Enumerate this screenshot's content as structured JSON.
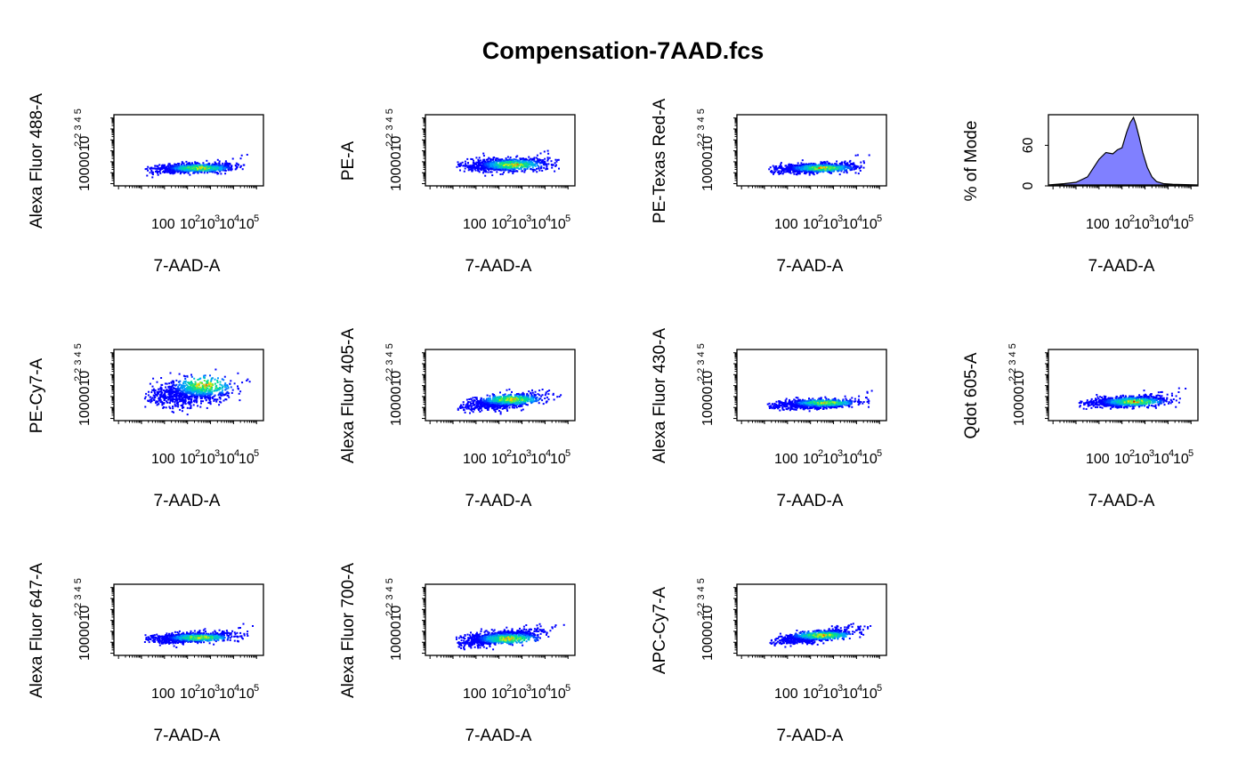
{
  "figure": {
    "title": "Compensation-7AAD.fcs"
  },
  "chart_data": [
    {
      "type": "scatter",
      "panel": 1,
      "xlabel": "7-AAD-A",
      "ylabel": "Alexa Fluor 488-A",
      "x_ticks": [
        "10^0",
        "10^2",
        "10^3",
        "10^4",
        "10^5"
      ],
      "y_ticks": [
        "10^0",
        "10^2",
        "10^3",
        "10^4",
        "10^5"
      ],
      "x_log_range": [
        -1.2,
        5.3
      ],
      "y_log_range": [
        -1.2,
        5.3
      ],
      "density": {
        "center": [
          2.2,
          0.5
        ],
        "spread": [
          0.9,
          0.22
        ],
        "hotspot": [
          2.5,
          0.5
        ]
      }
    },
    {
      "type": "scatter",
      "panel": 2,
      "xlabel": "7-AAD-A",
      "ylabel": "PE-A",
      "x_ticks": [
        "10^0",
        "10^2",
        "10^3",
        "10^4",
        "10^5"
      ],
      "y_ticks": [
        "10^0",
        "10^2",
        "10^3",
        "10^4",
        "10^5"
      ],
      "x_log_range": [
        -1.2,
        5.3
      ],
      "y_log_range": [
        -1.2,
        5.3
      ],
      "density": {
        "center": [
          2.2,
          0.8
        ],
        "spread": [
          0.9,
          0.3
        ],
        "hotspot": [
          2.6,
          0.8
        ]
      }
    },
    {
      "type": "scatter",
      "panel": 3,
      "xlabel": "7-AAD-A",
      "ylabel": "PE-Texas Red-A",
      "x_ticks": [
        "10^0",
        "10^2",
        "10^3",
        "10^4",
        "10^5"
      ],
      "y_ticks": [
        "10^0",
        "10^2",
        "10^3",
        "10^4",
        "10^5"
      ],
      "x_log_range": [
        -1.2,
        5.3
      ],
      "y_log_range": [
        -1.2,
        5.3
      ],
      "density": {
        "center": [
          2.1,
          0.5
        ],
        "spread": [
          0.9,
          0.22
        ],
        "hotspot": [
          2.5,
          0.5
        ]
      }
    },
    {
      "type": "area",
      "panel": 4,
      "xlabel": "7-AAD-A",
      "ylabel": "% of Mode",
      "x_ticks": [
        "10^0",
        "10^2",
        "10^3",
        "10^4",
        "10^5"
      ],
      "y_ticks": [
        "0",
        "60"
      ],
      "x_log_range": [
        -1.2,
        5.3
      ],
      "ylim": [
        0,
        100
      ],
      "fill": "#8080ff",
      "x": [
        -1.2,
        -0.5,
        0,
        0.5,
        1.0,
        1.3,
        1.6,
        1.8,
        2.0,
        2.2,
        2.35,
        2.5,
        2.6,
        2.75,
        2.9,
        3.1,
        3.3,
        3.5,
        3.8,
        4.2,
        5.3
      ],
      "y": [
        0,
        2,
        4,
        12,
        38,
        48,
        46,
        52,
        55,
        78,
        92,
        100,
        90,
        70,
        48,
        26,
        12,
        5,
        2,
        1,
        0
      ]
    },
    {
      "type": "scatter",
      "panel": 5,
      "xlabel": "7-AAD-A",
      "ylabel": "PE-Cy7-A",
      "x_ticks": [
        "10^0",
        "10^2",
        "10^3",
        "10^4",
        "10^5"
      ],
      "y_ticks": [
        "10^0",
        "10^2",
        "10^3",
        "10^4",
        "10^5"
      ],
      "x_log_range": [
        -1.2,
        5.3
      ],
      "y_log_range": [
        -1.2,
        5.3
      ],
      "density": {
        "center": [
          2.0,
          1.4
        ],
        "spread": [
          0.9,
          0.6
        ],
        "hotspot": [
          2.7,
          2.1
        ]
      }
    },
    {
      "type": "scatter",
      "panel": 6,
      "xlabel": "7-AAD-A",
      "ylabel": "Alexa Fluor 405-A",
      "x_ticks": [
        "10^0",
        "10^2",
        "10^3",
        "10^4",
        "10^5"
      ],
      "y_ticks": [
        "10^0",
        "10^2",
        "10^3",
        "10^4",
        "10^5"
      ],
      "x_log_range": [
        -1.2,
        5.3
      ],
      "y_log_range": [
        -1.2,
        5.3
      ],
      "density": {
        "center": [
          2.1,
          0.6
        ],
        "spread": [
          0.9,
          0.3
        ],
        "hotspot": [
          2.5,
          0.8
        ]
      }
    },
    {
      "type": "scatter",
      "panel": 7,
      "xlabel": "7-AAD-A",
      "ylabel": "Alexa Fluor 430-A",
      "x_ticks": [
        "10^0",
        "10^2",
        "10^3",
        "10^4",
        "10^5"
      ],
      "y_ticks": [
        "10^0",
        "10^2",
        "10^3",
        "10^4",
        "10^5"
      ],
      "x_log_range": [
        -1.2,
        5.3
      ],
      "y_log_range": [
        -1.2,
        5.3
      ],
      "density": {
        "center": [
          2.1,
          0.4
        ],
        "spread": [
          0.9,
          0.2
        ],
        "hotspot": [
          2.6,
          0.5
        ]
      }
    },
    {
      "type": "scatter",
      "panel": 8,
      "xlabel": "7-AAD-A",
      "ylabel": "Qdot 605-A",
      "x_ticks": [
        "10^0",
        "10^2",
        "10^3",
        "10^4",
        "10^5"
      ],
      "y_ticks": [
        "10^0",
        "10^2",
        "10^3",
        "10^4",
        "10^5"
      ],
      "x_log_range": [
        -1.2,
        5.3
      ],
      "y_log_range": [
        -1.2,
        5.3
      ],
      "density": {
        "center": [
          2.1,
          0.6
        ],
        "spread": [
          0.9,
          0.25
        ],
        "hotspot": [
          2.5,
          0.6
        ]
      }
    },
    {
      "type": "scatter",
      "panel": 9,
      "xlabel": "7-AAD-A",
      "ylabel": "Alexa Fluor 647-A",
      "x_ticks": [
        "10^0",
        "10^2",
        "10^3",
        "10^4",
        "10^5"
      ],
      "y_ticks": [
        "10^0",
        "10^2",
        "10^3",
        "10^4",
        "10^5"
      ],
      "x_log_range": [
        -1.2,
        5.3
      ],
      "y_log_range": [
        -1.2,
        5.3
      ],
      "density": {
        "center": [
          2.1,
          0.5
        ],
        "spread": [
          0.9,
          0.22
        ],
        "hotspot": [
          2.5,
          0.5
        ]
      }
    },
    {
      "type": "scatter",
      "panel": 10,
      "xlabel": "7-AAD-A",
      "ylabel": "Alexa Fluor 700-A",
      "x_ticks": [
        "10^0",
        "10^2",
        "10^3",
        "10^4",
        "10^5"
      ],
      "y_ticks": [
        "10^0",
        "10^2",
        "10^3",
        "10^4",
        "10^5"
      ],
      "x_log_range": [
        -1.2,
        5.3
      ],
      "y_log_range": [
        -1.2,
        5.3
      ],
      "density": {
        "center": [
          2.0,
          0.5
        ],
        "spread": [
          0.9,
          0.3
        ],
        "hotspot": [
          2.4,
          0.4
        ]
      }
    },
    {
      "type": "scatter",
      "panel": 11,
      "xlabel": "7-AAD-A",
      "ylabel": "APC-Cy7-A",
      "x_ticks": [
        "10^0",
        "10^2",
        "10^3",
        "10^4",
        "10^5"
      ],
      "y_ticks": [
        "10^0",
        "10^2",
        "10^3",
        "10^4",
        "10^5"
      ],
      "x_log_range": [
        -1.2,
        5.3
      ],
      "y_log_range": [
        -1.2,
        5.3
      ],
      "density": {
        "center": [
          2.1,
          0.6
        ],
        "spread": [
          0.9,
          0.25
        ],
        "hotspot": [
          2.5,
          0.7
        ]
      }
    }
  ],
  "colors": {
    "low": "#0000ff",
    "mid1": "#00bfff",
    "mid2": "#00ff80",
    "mid3": "#ffff00",
    "high": "#ff0000",
    "axis": "#000000"
  }
}
